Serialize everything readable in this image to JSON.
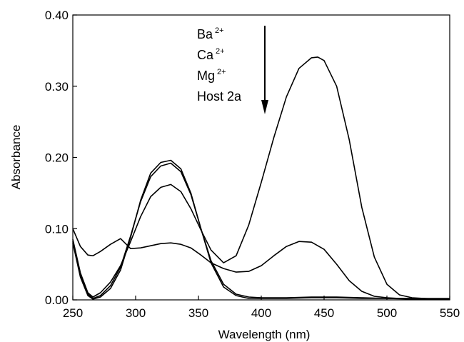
{
  "chart_data": {
    "type": "line",
    "xlabel": "Wavelength (nm)",
    "ylabel": "Absorbance",
    "xlim": [
      250,
      550
    ],
    "ylim": [
      0.0,
      0.4
    ],
    "x_ticks": [
      250,
      300,
      350,
      400,
      450,
      500,
      550
    ],
    "y_ticks": [
      "0.00",
      "0.10",
      "0.20",
      "0.30",
      "0.40"
    ],
    "grid": false,
    "line_color": "#000000",
    "annotation": {
      "labels": [
        {
          "base": "Ba",
          "sup": "2+"
        },
        {
          "base": "Ca",
          "sup": "2+"
        },
        {
          "base": "Mg",
          "sup": "2+"
        },
        {
          "base": "Host 2a",
          "sup": ""
        }
      ],
      "arrow": "down"
    },
    "series": [
      {
        "x": [
          250,
          256,
          262,
          266,
          272,
          280,
          288,
          296,
          304,
          312,
          320,
          328,
          336,
          344,
          352,
          360,
          370,
          380,
          390,
          400,
          410,
          420,
          430,
          440,
          450,
          460,
          470,
          480,
          490,
          500,
          510,
          520,
          530,
          540,
          550
        ],
        "y": [
          0.1,
          0.075,
          0.063,
          0.062,
          0.068,
          0.078,
          0.086,
          0.072,
          0.073,
          0.076,
          0.079,
          0.08,
          0.078,
          0.073,
          0.063,
          0.052,
          0.044,
          0.039,
          0.04,
          0.048,
          0.062,
          0.075,
          0.082,
          0.081,
          0.071,
          0.05,
          0.027,
          0.012,
          0.005,
          0.003,
          0.002,
          0.002,
          0.002,
          0.002,
          0.002
        ]
      },
      {
        "x": [
          250,
          256,
          262,
          266,
          272,
          280,
          288,
          296,
          304,
          312,
          320,
          328,
          336,
          344,
          352,
          360,
          370,
          380,
          390,
          400,
          410,
          420,
          430,
          440,
          445,
          450,
          460,
          470,
          480,
          490,
          500,
          510,
          520,
          530,
          540,
          550
        ],
        "y": [
          0.085,
          0.038,
          0.01,
          0.004,
          0.01,
          0.025,
          0.048,
          0.082,
          0.117,
          0.145,
          0.158,
          0.162,
          0.152,
          0.128,
          0.098,
          0.07,
          0.052,
          0.062,
          0.105,
          0.165,
          0.228,
          0.285,
          0.325,
          0.34,
          0.341,
          0.336,
          0.3,
          0.225,
          0.13,
          0.06,
          0.022,
          0.007,
          0.003,
          0.002,
          0.001,
          0.001
        ]
      },
      {
        "x": [
          250,
          256,
          262,
          266,
          272,
          280,
          288,
          296,
          304,
          312,
          320,
          328,
          336,
          344,
          352,
          360,
          370,
          380,
          390,
          400,
          420,
          440,
          460,
          480,
          500,
          520,
          550
        ],
        "y": [
          0.082,
          0.035,
          0.008,
          0.002,
          0.006,
          0.02,
          0.046,
          0.09,
          0.138,
          0.173,
          0.188,
          0.192,
          0.18,
          0.148,
          0.1,
          0.055,
          0.022,
          0.008,
          0.004,
          0.003,
          0.003,
          0.004,
          0.004,
          0.003,
          0.002,
          0.002,
          0.001
        ]
      },
      {
        "x": [
          250,
          256,
          262,
          266,
          272,
          280,
          288,
          296,
          304,
          312,
          320,
          328,
          336,
          344,
          352,
          360,
          370,
          380,
          390,
          400,
          420,
          440,
          460,
          480,
          500,
          520,
          550
        ],
        "y": [
          0.08,
          0.032,
          0.006,
          0.001,
          0.004,
          0.016,
          0.042,
          0.088,
          0.14,
          0.178,
          0.193,
          0.196,
          0.184,
          0.15,
          0.1,
          0.052,
          0.018,
          0.006,
          0.002,
          0.002,
          0.002,
          0.003,
          0.003,
          0.002,
          0.002,
          0.001,
          0.001
        ]
      }
    ]
  }
}
